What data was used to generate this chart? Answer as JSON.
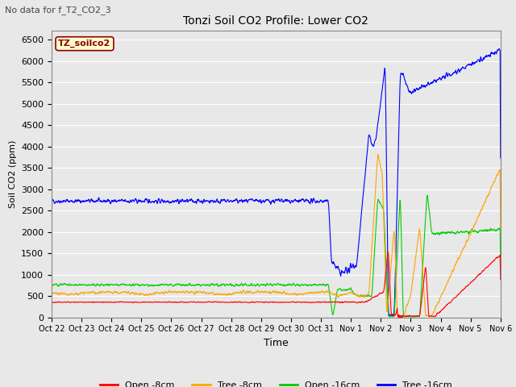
{
  "title": "Tonzi Soil CO2 Profile: Lower CO2",
  "subtitle": "No data for f_T2_CO2_3",
  "ylabel": "Soil CO2 (ppm)",
  "xlabel": "Time",
  "legend_label": "TZ_soilco2",
  "ylim": [
    0,
    6700
  ],
  "yticks": [
    0,
    500,
    1000,
    1500,
    2000,
    2500,
    3000,
    3500,
    4000,
    4500,
    5000,
    5500,
    6000,
    6500
  ],
  "series": {
    "open_8cm": {
      "label": "Open -8cm",
      "color": "#ff0000"
    },
    "tree_8cm": {
      "label": "Tree -8cm",
      "color": "#ffa500"
    },
    "open_16cm": {
      "label": "Open -16cm",
      "color": "#00cc00"
    },
    "tree_16cm": {
      "label": "Tree -16cm",
      "color": "#0000ff"
    }
  },
  "bg_color": "#e8e8e8",
  "grid_color": "#ffffff",
  "xtick_labels": [
    "Oct 22",
    "Oct 23",
    "Oct 24",
    "Oct 25",
    "Oct 26",
    "Oct 27",
    "Oct 28",
    "Oct 29",
    "Oct 30",
    "Oct 31",
    "Nov 1",
    "Nov 2",
    "Nov 3",
    "Nov 4",
    "Nov 5",
    "Nov 6"
  ]
}
